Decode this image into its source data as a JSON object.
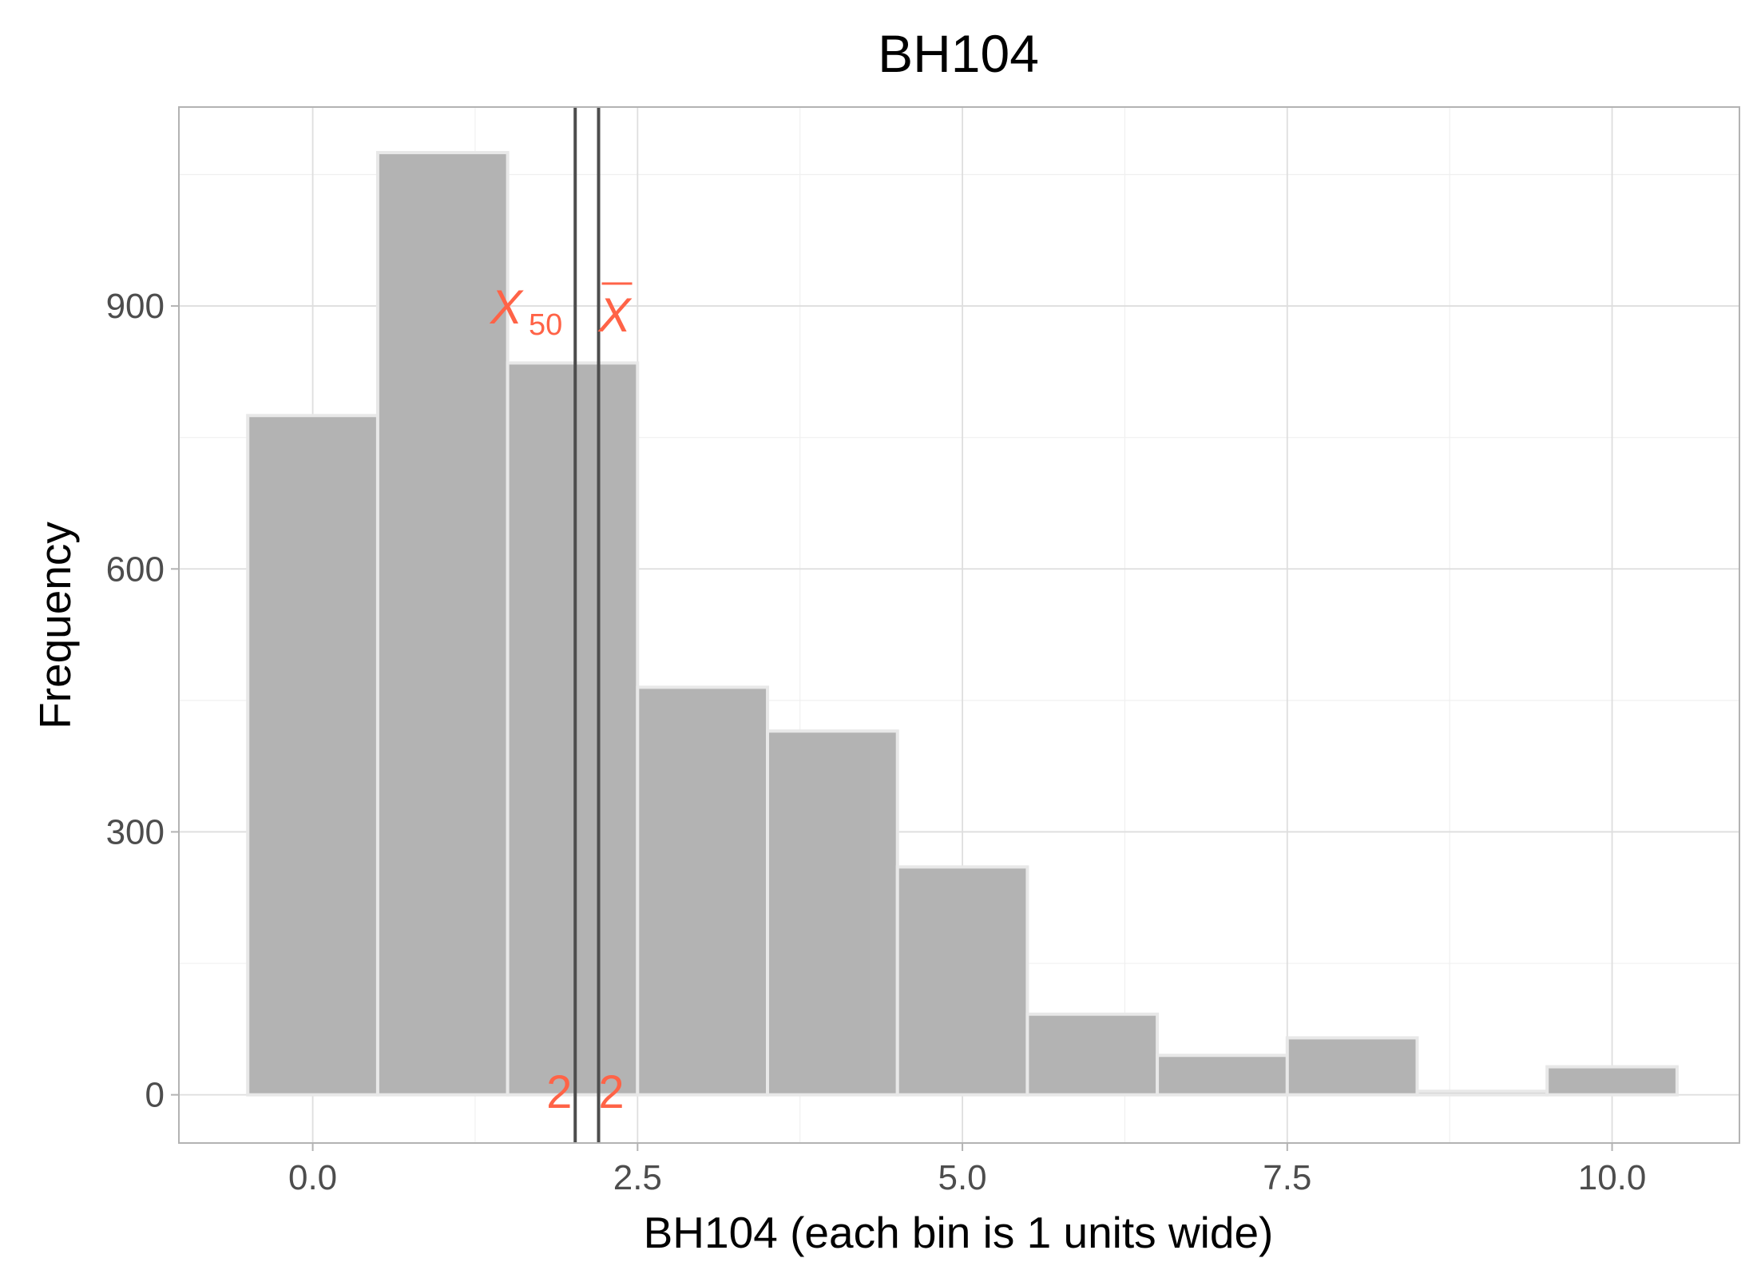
{
  "chart_data": {
    "type": "bar",
    "title": "BH104",
    "xlabel": "BH104 (each bin is 1 units wide)",
    "ylabel": "Frequency",
    "bin_width": 1,
    "xlim": [
      -1.03,
      10.98
    ],
    "ylim": [
      -55,
      1127
    ],
    "x_ticks": [
      0,
      2.5,
      5,
      7.5,
      10
    ],
    "x_tick_labels": [
      "0.0",
      "2.5",
      "5.0",
      "7.5",
      "10.0"
    ],
    "y_ticks": [
      0,
      300,
      600,
      900
    ],
    "y_tick_labels": [
      "0",
      "300",
      "600",
      "900"
    ],
    "grid": true,
    "bins": [
      {
        "x": 0,
        "count": 775
      },
      {
        "x": 1,
        "count": 1075
      },
      {
        "x": 2,
        "count": 835
      },
      {
        "x": 3,
        "count": 465
      },
      {
        "x": 4,
        "count": 415
      },
      {
        "x": 5,
        "count": 260
      },
      {
        "x": 6,
        "count": 92
      },
      {
        "x": 7,
        "count": 45
      },
      {
        "x": 8,
        "count": 65
      },
      {
        "x": 9,
        "count": 4
      },
      {
        "x": 10,
        "count": 32
      }
    ],
    "reference_lines": [
      {
        "name": "median",
        "x": 2.02,
        "symbol": "X",
        "subscript": "50",
        "value_label": "2"
      },
      {
        "name": "mean",
        "x": 2.2,
        "symbol": "X",
        "overline": true,
        "value_label": "2"
      }
    ],
    "colors": {
      "bar_fill": "#b3b3b3",
      "bar_outline": "#e8e8e8",
      "reference_line": "#4d4d4d",
      "annotation": "#ff6347",
      "grid_major": "#dedede",
      "grid_minor": "#f0f0f0",
      "panel_border": "#b3b3b3",
      "tick_label": "#4d4d4d"
    }
  }
}
